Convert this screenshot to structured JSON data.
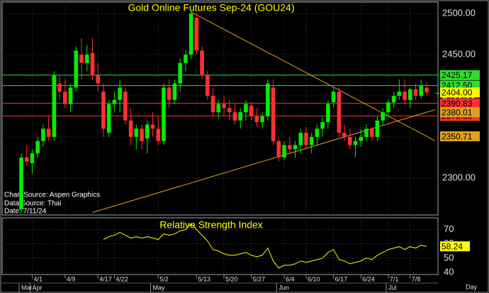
{
  "chart_data": {
    "type": "candlestick",
    "title": "Gold Online Futures Sep-24 (GOU24)",
    "annotations": [
      "Chart Source: Aspen Graphics",
      "Data Source: Thai",
      "Date: 7/11/24"
    ],
    "categories": [
      null,
      null,
      "4/1",
      null,
      null,
      null,
      null,
      null,
      "4/9",
      null,
      null,
      null,
      null,
      null,
      "4/17",
      null,
      null,
      "4/22",
      null,
      null,
      null,
      null,
      null,
      null,
      null,
      "5/2",
      null,
      null,
      null,
      null,
      null,
      null,
      "5/13",
      null,
      null,
      null,
      null,
      "5/20",
      null,
      null,
      null,
      null,
      "5/27",
      null,
      null,
      null,
      null,
      null,
      "6/4",
      null,
      null,
      null,
      "6/10",
      null,
      null,
      null,
      null,
      "6/17",
      null,
      null,
      null,
      null,
      "6/24",
      null,
      null,
      null,
      null,
      "7/1",
      null,
      null,
      null,
      "7/8",
      null,
      null,
      null
    ],
    "months": [
      "Mar",
      null,
      "Apr",
      null,
      null,
      null,
      null,
      null,
      null,
      null,
      null,
      null,
      null,
      null,
      null,
      null,
      null,
      null,
      null,
      null,
      null,
      null,
      null,
      null,
      "May",
      null,
      null,
      null,
      null,
      null,
      null,
      null,
      null,
      null,
      null,
      null,
      null,
      null,
      null,
      null,
      null,
      null,
      null,
      null,
      null,
      null,
      null,
      "Jun",
      null,
      null,
      null,
      null,
      null,
      null,
      null,
      null,
      null,
      null,
      null,
      null,
      null,
      null,
      null,
      null,
      null,
      null,
      null,
      "Jul",
      null,
      null,
      null,
      null,
      null,
      null,
      null
    ],
    "day_label": "Day",
    "open": [
      2262,
      2325,
      2318,
      2330,
      2345,
      2360,
      2350,
      2415,
      2405,
      2390,
      2410,
      2450,
      2440,
      2452,
      2425,
      2405,
      2355,
      2390,
      2395,
      2405,
      2370,
      2350,
      2360,
      2348,
      2365,
      2360,
      2345,
      2410,
      2395,
      2415,
      2440,
      2450,
      2495,
      2455,
      2425,
      2400,
      2380,
      2390,
      2385,
      2380,
      2370,
      2380,
      2388,
      2375,
      2368,
      2375,
      2410,
      2345,
      2325,
      2340,
      2335,
      2340,
      2355,
      2340,
      2350,
      2360,
      2368,
      2392,
      2405,
      2355,
      2350,
      2340,
      2345,
      2350,
      2360,
      2350,
      2370,
      2380,
      2392,
      2400,
      2405,
      2395,
      2408,
      2400,
      2410
    ],
    "high": [
      2330,
      2340,
      2335,
      2350,
      2365,
      2375,
      2430,
      2425,
      2420,
      2415,
      2460,
      2470,
      2462,
      2470,
      2440,
      2415,
      2395,
      2405,
      2420,
      2410,
      2385,
      2365,
      2365,
      2370,
      2380,
      2375,
      2415,
      2420,
      2420,
      2445,
      2455,
      2505,
      2500,
      2460,
      2430,
      2410,
      2395,
      2400,
      2395,
      2390,
      2385,
      2395,
      2392,
      2385,
      2380,
      2420,
      2420,
      2350,
      2345,
      2350,
      2345,
      2360,
      2362,
      2355,
      2365,
      2375,
      2395,
      2410,
      2410,
      2365,
      2360,
      2350,
      2360,
      2365,
      2362,
      2375,
      2385,
      2395,
      2405,
      2420,
      2420,
      2410,
      2415,
      2420,
      2416
    ],
    "low": [
      2258,
      2315,
      2305,
      2325,
      2338,
      2345,
      2345,
      2395,
      2385,
      2380,
      2405,
      2420,
      2430,
      2420,
      2405,
      2350,
      2350,
      2380,
      2380,
      2365,
      2340,
      2335,
      2335,
      2330,
      2350,
      2340,
      2340,
      2385,
      2390,
      2405,
      2430,
      2445,
      2450,
      2420,
      2395,
      2375,
      2372,
      2375,
      2370,
      2365,
      2360,
      2370,
      2370,
      2362,
      2360,
      2370,
      2340,
      2320,
      2322,
      2330,
      2325,
      2330,
      2335,
      2330,
      2340,
      2350,
      2360,
      2385,
      2350,
      2345,
      2335,
      2325,
      2338,
      2345,
      2345,
      2345,
      2365,
      2375,
      2385,
      2395,
      2390,
      2385,
      2395,
      2396,
      2400
    ],
    "close": [
      2325,
      2320,
      2330,
      2345,
      2360,
      2350,
      2425,
      2405,
      2390,
      2410,
      2455,
      2440,
      2450,
      2425,
      2415,
      2360,
      2390,
      2395,
      2410,
      2370,
      2350,
      2360,
      2345,
      2365,
      2360,
      2345,
      2410,
      2395,
      2415,
      2440,
      2450,
      2500,
      2455,
      2425,
      2400,
      2380,
      2390,
      2385,
      2380,
      2370,
      2380,
      2390,
      2375,
      2368,
      2375,
      2415,
      2345,
      2325,
      2340,
      2335,
      2340,
      2355,
      2340,
      2350,
      2360,
      2368,
      2390,
      2405,
      2355,
      2350,
      2340,
      2345,
      2350,
      2360,
      2350,
      2370,
      2380,
      2392,
      2400,
      2405,
      2395,
      2408,
      2400,
      2412,
      2404
    ],
    "up_color": "#00ee00",
    "down_color": "#ff3030",
    "ylim": [
      2255,
      2514
    ],
    "yticks": [
      {
        "value": 2300,
        "label": "2300.00"
      },
      {
        "value": 2350,
        "label": "2350.00"
      },
      {
        "value": 2400,
        "label": "2400.00"
      },
      {
        "value": 2450,
        "label": "2450.00"
      },
      {
        "value": 2500,
        "label": "2500.00"
      }
    ],
    "grid": true,
    "hlines": [
      {
        "value": 2425.17,
        "color": "#33dd33"
      },
      {
        "value": 2412.5,
        "label": "2412.50",
        "color": "#33dd33"
      },
      {
        "value": 2390.83,
        "color": "#ff3030"
      },
      {
        "value": 2375.5,
        "label": "2375.50",
        "color": "#ff3030"
      }
    ],
    "trendlines": [
      {
        "points": [
          [
            31,
            2502
          ],
          [
            74,
            2350.71
          ]
        ],
        "color": "#e0a020"
      },
      {
        "points": [
          [
            13,
            2258
          ],
          [
            74,
            2380.01
          ]
        ],
        "color": "#e0a020"
      }
    ],
    "price_marker": {
      "value": 2404,
      "label": "2404.00",
      "color": "#ffff00"
    },
    "rsi": {
      "title": "Relative Strength Index",
      "color": "#ffff00",
      "values": [
        null,
        null,
        null,
        null,
        null,
        null,
        null,
        null,
        null,
        null,
        null,
        null,
        null,
        null,
        null,
        63,
        65,
        66,
        68,
        66,
        64,
        65,
        64,
        65,
        64,
        63,
        67,
        66,
        67,
        69,
        70,
        74,
        70,
        66,
        62,
        56,
        55,
        53,
        52,
        52,
        53,
        54,
        52,
        51,
        52,
        57,
        48,
        43,
        45,
        45,
        46,
        48,
        47,
        48,
        49,
        50,
        54,
        56,
        49,
        48,
        46,
        47,
        48,
        50,
        49,
        52,
        54,
        56,
        57,
        58,
        56,
        58,
        57,
        59,
        58.24
      ],
      "ylim": [
        38.5,
        78.2
      ],
      "yticks": [
        40,
        50,
        60,
        70
      ],
      "marker": {
        "value": 58.24,
        "color": "#ffff00"
      }
    }
  }
}
